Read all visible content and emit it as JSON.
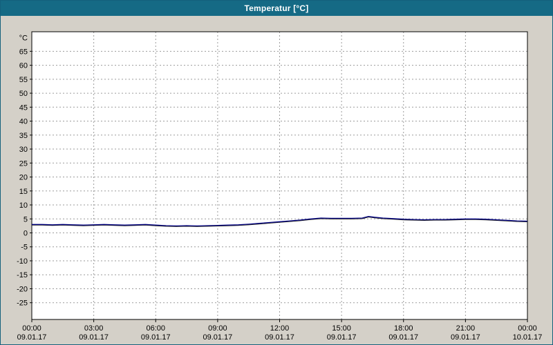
{
  "window": {
    "title": "Temperatur [°C]"
  },
  "colors": {
    "titlebar_bg": "#156a85",
    "titlebar_text": "#ffffff",
    "page_bg": "#d4d0c8",
    "plot_bg": "#ffffff",
    "grid": "#9a9a9a",
    "axis": "#000000",
    "line": "#000080",
    "line_shadow": "#2a2a2a"
  },
  "chart_data": {
    "type": "line",
    "title": "Temperatur [°C]",
    "y_unit_label": "°C",
    "ylim": [
      -31,
      72
    ],
    "yticks": [
      65,
      60,
      55,
      50,
      45,
      40,
      35,
      30,
      25,
      20,
      15,
      10,
      5,
      0,
      -5,
      -10,
      -15,
      -20,
      -25
    ],
    "xlim_hours": [
      0,
      24
    ],
    "xtick_hours": [
      0,
      3,
      6,
      9,
      12,
      15,
      18,
      21,
      24
    ],
    "xticks": [
      {
        "time": "00:00",
        "date": "09.01.17"
      },
      {
        "time": "03:00",
        "date": "09.01.17"
      },
      {
        "time": "06:00",
        "date": "09.01.17"
      },
      {
        "time": "09:00",
        "date": "09.01.17"
      },
      {
        "time": "12:00",
        "date": "09.01.17"
      },
      {
        "time": "15:00",
        "date": "09.01.17"
      },
      {
        "time": "18:00",
        "date": "09.01.17"
      },
      {
        "time": "21:00",
        "date": "09.01.17"
      },
      {
        "time": "00:00",
        "date": "10.01.17"
      }
    ],
    "grid": true,
    "legend": "none",
    "series": [
      {
        "name": "Temperatur",
        "color": "#000080",
        "x_hours": [
          0,
          0.5,
          1,
          1.5,
          2,
          2.5,
          3,
          3.5,
          4,
          4.5,
          5,
          5.5,
          6,
          6.5,
          7,
          7.5,
          8,
          8.5,
          9,
          9.5,
          10,
          10.5,
          11,
          11.5,
          12,
          12.5,
          13,
          13.5,
          14,
          14.5,
          15,
          15.5,
          16,
          16.3,
          16.6,
          17,
          17.5,
          18,
          18.5,
          19,
          19.5,
          20,
          20.5,
          21,
          21.5,
          22,
          22.5,
          23,
          23.5,
          24
        ],
        "values": [
          3.0,
          3.0,
          2.9,
          3.0,
          2.9,
          2.8,
          2.9,
          3.0,
          2.9,
          2.8,
          2.9,
          3.0,
          2.8,
          2.6,
          2.5,
          2.6,
          2.5,
          2.6,
          2.7,
          2.8,
          2.9,
          3.1,
          3.4,
          3.7,
          4.0,
          4.3,
          4.6,
          5.0,
          5.3,
          5.2,
          5.2,
          5.2,
          5.3,
          5.9,
          5.6,
          5.3,
          5.1,
          4.9,
          4.8,
          4.7,
          4.8,
          4.8,
          4.9,
          5.0,
          5.0,
          4.9,
          4.7,
          4.5,
          4.3,
          4.2
        ]
      }
    ]
  }
}
